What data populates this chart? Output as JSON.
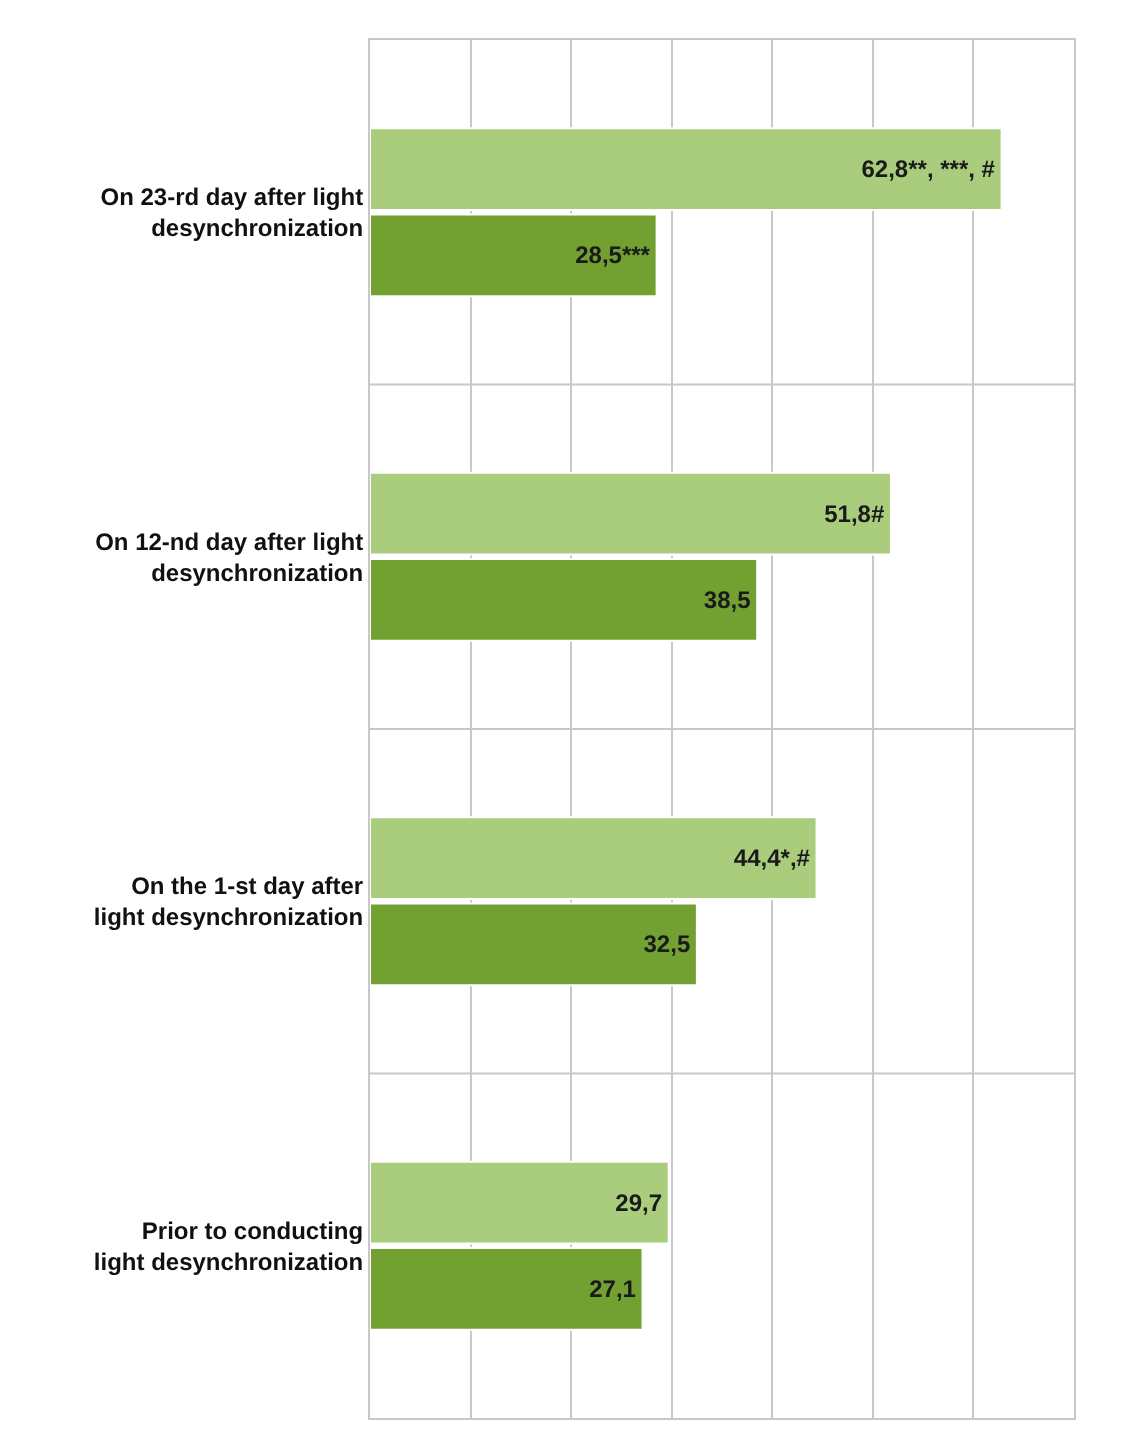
{
  "chart_data": {
    "type": "bar",
    "orientation": "horizontal",
    "categories": [
      "On 23-rd day after light desynchronization",
      "On 12-nd day after light desynchronization",
      "On the 1-st day after light desynchronization",
      "Prior to conducting light desynchronization"
    ],
    "series": [
      {
        "color": "#a9cd7c",
        "values": [
          62.8,
          51.8,
          44.4,
          29.7
        ],
        "value_labels": [
          "62,8**, ***, #",
          "51,8#",
          "44,4*,#",
          "29,7"
        ]
      },
      {
        "color": "#72a132",
        "values": [
          28.5,
          38.5,
          32.5,
          27.1
        ],
        "value_labels": [
          "28,5***",
          "38,5",
          "32,5",
          "27,1"
        ]
      }
    ],
    "xlim": [
      0,
      70
    ],
    "xticks": [
      {
        "value": 0,
        "label": null
      },
      {
        "value": 10,
        "label": null
      },
      {
        "value": 20,
        "label": null
      },
      {
        "value": 30,
        "label": null
      },
      {
        "value": 40,
        "label": null
      },
      {
        "value": 50,
        "label": null
      },
      {
        "value": 60,
        "label": null
      },
      {
        "value": 70,
        "label": null
      }
    ],
    "tick_labels": "y",
    "grid": true
  }
}
